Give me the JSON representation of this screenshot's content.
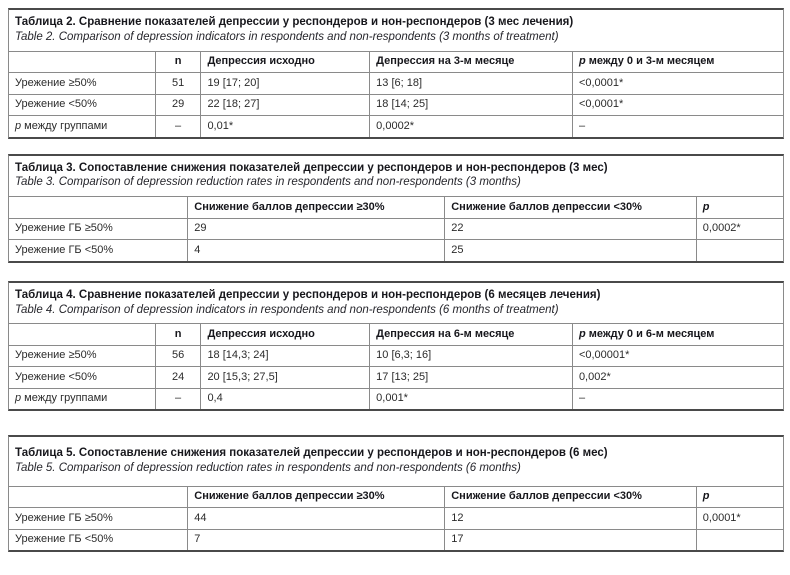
{
  "page": {
    "background": "#ffffff"
  },
  "colors": {
    "border_inner": "#8a8a8a",
    "border_outer": "#4a4a4a",
    "title_text": "#17171c",
    "body_text": "#2b2b2b"
  },
  "tables": [
    {
      "name": "Таблица 2",
      "title_ru": "Таблица 2. Сравнение показателей депрессии у респондеров и нон-респондеров (3 мес лечения)",
      "title_en": "Table 2. Comparison of depression indicators in respondents and non-respondents (3 months of treatment)",
      "headers": [
        "",
        "n",
        "Депрессия исходно",
        "Депрессия на 3-м месяце"
      ],
      "header_p": {
        "lead": "p",
        "rest": " между 0 и 3-м месяцем"
      },
      "rows": [
        [
          "Урежение ≥50%",
          "51",
          "19 [17; 20]",
          "13 [6; 18]",
          "<0,0001*"
        ],
        [
          "Урежение <50%",
          "29",
          "22 [18; 27]",
          "18 [14; 25]",
          "<0,0001*"
        ]
      ],
      "p_row": {
        "lead": "p",
        "rest": " между группами",
        "cells": [
          "–",
          "0,01*",
          "0,0002*",
          "–"
        ]
      }
    },
    {
      "name": "Таблица 3",
      "title_ru": "Таблица 3. Сопоставление снижения показателей депрессии у респондеров и нон-респондеров (3 мес)",
      "title_en": "Table 3. Comparison of depression reduction rates in respondents and non-respondents (3 months)",
      "headers": [
        "",
        "Снижение баллов депрессии ≥30%",
        "Снижение баллов депрессии <30%"
      ],
      "header_p": {
        "lead": "p",
        "rest": ""
      },
      "rows": [
        [
          "Урежение ГБ ≥50%",
          "29",
          "22",
          "0,0002*"
        ],
        [
          "Урежение ГБ <50%",
          "4",
          "25",
          ""
        ]
      ]
    },
    {
      "name": "Таблица 4",
      "title_ru": "Таблица 4. Сравнение показателей депрессии у респондеров и нон-респондеров (6 месяцев лечения)",
      "title_en": "Table 4. Comparison of depression indicators in respondents and non-respondents (6 months of treatment)",
      "headers": [
        "",
        "n",
        "Депрессия исходно",
        "Депрессия на 6-м месяце"
      ],
      "header_p": {
        "lead": "p",
        "rest": " между 0 и 6-м месяцем"
      },
      "rows": [
        [
          "Урежение ≥50%",
          "56",
          "18 [14,3; 24]",
          "10 [6,3; 16]",
          "<0,00001*"
        ],
        [
          "Урежение <50%",
          "24",
          "20 [15,3; 27,5]",
          "17 [13; 25]",
          "0,002*"
        ]
      ],
      "p_row": {
        "lead": "p",
        "rest": " между группами",
        "cells": [
          "–",
          "0,4",
          "0,001*",
          "–"
        ]
      }
    },
    {
      "name": "Таблица 5",
      "title_ru": "Таблица 5. Сопоставление снижения показателей депрессии у респондеров и нон-респондеров (6 мес)",
      "title_en": "Table 5. Comparison of depression reduction rates in respondents and non-respondents (6 months)",
      "headers": [
        "",
        "Снижение баллов депрессии ≥30%",
        "Снижение баллов депрессии <30%"
      ],
      "header_p": {
        "lead": "p",
        "rest": ""
      },
      "rows": [
        [
          "Урежение ГБ ≥50%",
          "44",
          "12",
          "0,0001*"
        ],
        [
          "Урежение ГБ <50%",
          "7",
          "17",
          ""
        ]
      ]
    }
  ]
}
